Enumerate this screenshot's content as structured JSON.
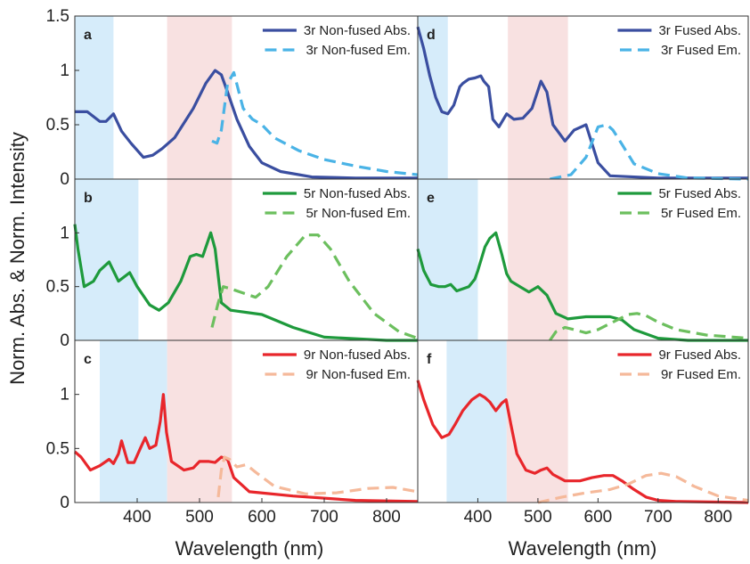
{
  "figure": {
    "ylabel": "Norm. Abs. & Norm. Intensity",
    "xlabel_left": "Wavelength (nm)",
    "xlabel_right": "Wavelength (nm)"
  },
  "chart_data": [
    {
      "id": "a",
      "type": "line",
      "panel_label": "a",
      "xlim": [
        300,
        850
      ],
      "ylim": [
        0,
        1.5
      ],
      "yticks": [
        0,
        0.5,
        1,
        1.5
      ],
      "xticks": [],
      "bands": [
        {
          "range": [
            300,
            362
          ],
          "color": "#d6ecfa"
        },
        {
          "range": [
            448,
            552
          ],
          "color": "#f8e1e1"
        }
      ],
      "series": [
        {
          "name": "3r Non-fused Abs.",
          "style": "solid",
          "color": "#3a4ea0",
          "x": [
            300,
            320,
            340,
            350,
            362,
            375,
            390,
            410,
            425,
            440,
            460,
            490,
            510,
            525,
            535,
            545,
            560,
            580,
            600,
            630,
            680,
            750,
            850
          ],
          "y": [
            0.62,
            0.62,
            0.53,
            0.53,
            0.6,
            0.44,
            0.33,
            0.2,
            0.22,
            0.28,
            0.38,
            0.65,
            0.88,
            1.0,
            0.96,
            0.8,
            0.55,
            0.3,
            0.15,
            0.07,
            0.02,
            0.01,
            0.01
          ]
        },
        {
          "name": "3r Non-fused Em.",
          "style": "dashed",
          "color": "#4ab3e6",
          "x": [
            520,
            528,
            535,
            545,
            555,
            570,
            585,
            600,
            620,
            660,
            700,
            750,
            800,
            850
          ],
          "y": [
            0.35,
            0.33,
            0.45,
            0.88,
            0.98,
            0.65,
            0.55,
            0.5,
            0.38,
            0.26,
            0.18,
            0.12,
            0.07,
            0.04
          ]
        }
      ]
    },
    {
      "id": "b",
      "type": "line",
      "panel_label": "b",
      "xlim": [
        300,
        850
      ],
      "ylim": [
        0,
        1.5
      ],
      "yticks": [
        0,
        0.5,
        1
      ],
      "xticks": [],
      "bands": [
        {
          "range": [
            300,
            402
          ],
          "color": "#d6ecfa"
        },
        {
          "range": [
            448,
            552
          ],
          "color": "#f8e1e1"
        }
      ],
      "series": [
        {
          "name": "5r Non-fused Abs.",
          "style": "solid",
          "color": "#1e9a3c",
          "x": [
            300,
            305,
            315,
            330,
            340,
            355,
            370,
            388,
            400,
            420,
            435,
            450,
            470,
            485,
            495,
            505,
            518,
            525,
            535,
            550,
            600,
            650,
            700,
            800,
            850
          ],
          "y": [
            1.08,
            0.85,
            0.5,
            0.55,
            0.65,
            0.73,
            0.55,
            0.63,
            0.5,
            0.33,
            0.28,
            0.35,
            0.55,
            0.78,
            0.8,
            0.78,
            1.0,
            0.85,
            0.35,
            0.28,
            0.24,
            0.12,
            0.03,
            0.0,
            0.0
          ]
        },
        {
          "name": "5r Non-fused Em.",
          "style": "dashed",
          "color": "#6cbf5e",
          "x": [
            520,
            530,
            538,
            550,
            570,
            590,
            610,
            640,
            670,
            690,
            710,
            740,
            780,
            820,
            850
          ],
          "y": [
            0.12,
            0.35,
            0.5,
            0.48,
            0.44,
            0.4,
            0.5,
            0.78,
            0.98,
            0.98,
            0.85,
            0.55,
            0.25,
            0.08,
            0.02
          ]
        }
      ]
    },
    {
      "id": "c",
      "type": "line",
      "panel_label": "c",
      "xlim": [
        300,
        850
      ],
      "ylim": [
        0,
        1.5
      ],
      "yticks": [
        0,
        0.5,
        1
      ],
      "xticks": [
        400,
        500,
        600,
        700,
        800
      ],
      "bands": [
        {
          "range": [
            340,
            448
          ],
          "color": "#d6ecfa"
        },
        {
          "range": [
            448,
            552
          ],
          "color": "#f8e1e1"
        }
      ],
      "series": [
        {
          "name": "9r Non-fused Abs.",
          "style": "solid",
          "color": "#e8262b",
          "x": [
            300,
            310,
            325,
            340,
            355,
            362,
            370,
            375,
            385,
            395,
            405,
            413,
            420,
            430,
            437,
            442,
            447,
            455,
            475,
            490,
            500,
            515,
            525,
            535,
            545,
            555,
            580,
            650,
            750,
            850
          ],
          "y": [
            0.47,
            0.42,
            0.3,
            0.34,
            0.4,
            0.36,
            0.45,
            0.57,
            0.37,
            0.37,
            0.5,
            0.6,
            0.5,
            0.53,
            0.75,
            1.0,
            0.65,
            0.38,
            0.3,
            0.32,
            0.38,
            0.38,
            0.37,
            0.42,
            0.4,
            0.23,
            0.1,
            0.06,
            0.02,
            0.01
          ]
        },
        {
          "name": "9r Non-fused Em.",
          "style": "dashed",
          "color": "#f5b99a",
          "x": [
            530,
            535,
            540,
            548,
            560,
            575,
            590,
            620,
            670,
            720,
            770,
            810,
            850
          ],
          "y": [
            0.05,
            0.3,
            0.42,
            0.4,
            0.33,
            0.35,
            0.28,
            0.15,
            0.08,
            0.09,
            0.13,
            0.14,
            0.1
          ]
        }
      ]
    },
    {
      "id": "d",
      "type": "line",
      "panel_label": "d",
      "xlim": [
        300,
        850
      ],
      "ylim": [
        0,
        1.5
      ],
      "yticks": [],
      "xticks": [],
      "bands": [
        {
          "range": [
            300,
            350
          ],
          "color": "#d6ecfa"
        },
        {
          "range": [
            450,
            550
          ],
          "color": "#f8e1e1"
        }
      ],
      "series": [
        {
          "name": "3r Fused Abs.",
          "style": "solid",
          "color": "#3a4ea0",
          "x": [
            300,
            310,
            320,
            330,
            340,
            350,
            360,
            370,
            375,
            385,
            395,
            405,
            410,
            418,
            425,
            435,
            448,
            460,
            475,
            490,
            505,
            515,
            525,
            545,
            560,
            580,
            600,
            620,
            700,
            850
          ],
          "y": [
            1.4,
            1.2,
            0.95,
            0.75,
            0.62,
            0.6,
            0.68,
            0.85,
            0.88,
            0.92,
            0.93,
            0.95,
            0.9,
            0.85,
            0.55,
            0.48,
            0.6,
            0.55,
            0.56,
            0.65,
            0.9,
            0.8,
            0.5,
            0.35,
            0.45,
            0.5,
            0.15,
            0.03,
            0.01,
            0.01
          ]
        },
        {
          "name": "3r Fused Em.",
          "style": "dashed",
          "color": "#4ab3e6",
          "x": [
            520,
            555,
            580,
            600,
            615,
            625,
            640,
            660,
            700,
            750,
            850
          ],
          "y": [
            0.0,
            0.04,
            0.2,
            0.48,
            0.5,
            0.45,
            0.32,
            0.14,
            0.05,
            0.01,
            0.0
          ]
        }
      ]
    },
    {
      "id": "e",
      "type": "line",
      "panel_label": "e",
      "xlim": [
        300,
        850
      ],
      "ylim": [
        0,
        1.5
      ],
      "yticks": [],
      "xticks": [],
      "bands": [
        {
          "range": [
            300,
            400
          ],
          "color": "#d6ecfa"
        },
        {
          "range": [
            450,
            550
          ],
          "color": "#f8e1e1"
        }
      ],
      "series": [
        {
          "name": "5r Fused Abs.",
          "style": "solid",
          "color": "#1e9a3c",
          "x": [
            300,
            310,
            322,
            335,
            345,
            355,
            365,
            375,
            385,
            395,
            400,
            412,
            420,
            430,
            440,
            448,
            455,
            470,
            485,
            500,
            515,
            530,
            550,
            580,
            600,
            620,
            640,
            660,
            700,
            750,
            850
          ],
          "y": [
            0.85,
            0.65,
            0.52,
            0.5,
            0.5,
            0.52,
            0.46,
            0.48,
            0.5,
            0.57,
            0.65,
            0.87,
            0.95,
            1.0,
            0.8,
            0.62,
            0.55,
            0.5,
            0.45,
            0.5,
            0.42,
            0.25,
            0.2,
            0.22,
            0.22,
            0.22,
            0.19,
            0.1,
            0.02,
            0.0,
            0.0
          ]
        },
        {
          "name": "5r Fused Em.",
          "style": "dashed",
          "color": "#6cbf5e",
          "x": [
            520,
            530,
            545,
            560,
            580,
            600,
            625,
            650,
            665,
            680,
            700,
            730,
            780,
            850
          ],
          "y": [
            0.0,
            0.08,
            0.12,
            0.1,
            0.07,
            0.1,
            0.17,
            0.24,
            0.25,
            0.23,
            0.17,
            0.1,
            0.05,
            0.02
          ]
        }
      ]
    },
    {
      "id": "f",
      "type": "line",
      "panel_label": "f",
      "xlim": [
        300,
        850
      ],
      "ylim": [
        0,
        1.5
      ],
      "yticks": [],
      "xticks": [
        400,
        500,
        600,
        700,
        800
      ],
      "bands": [
        {
          "range": [
            348,
            448
          ],
          "color": "#d6ecfa"
        },
        {
          "range": [
            448,
            550
          ],
          "color": "#f8e1e1"
        }
      ],
      "series": [
        {
          "name": "9r Fused Abs.",
          "style": "solid",
          "color": "#e8262b",
          "x": [
            300,
            310,
            325,
            340,
            352,
            362,
            375,
            390,
            403,
            412,
            420,
            430,
            440,
            447,
            455,
            465,
            480,
            495,
            505,
            515,
            525,
            545,
            570,
            590,
            610,
            625,
            640,
            660,
            680,
            700,
            730,
            850
          ],
          "y": [
            1.13,
            0.95,
            0.72,
            0.6,
            0.63,
            0.72,
            0.85,
            0.95,
            1.0,
            0.97,
            0.93,
            0.85,
            0.92,
            0.95,
            0.72,
            0.45,
            0.3,
            0.27,
            0.3,
            0.32,
            0.26,
            0.2,
            0.2,
            0.23,
            0.25,
            0.25,
            0.2,
            0.12,
            0.05,
            0.02,
            0.01,
            0.0
          ]
        },
        {
          "name": "9r Fused Em.",
          "style": "dashed",
          "color": "#f5b99a",
          "x": [
            500,
            540,
            580,
            620,
            650,
            680,
            705,
            730,
            760,
            800,
            850
          ],
          "y": [
            0.0,
            0.05,
            0.09,
            0.12,
            0.17,
            0.25,
            0.27,
            0.24,
            0.15,
            0.06,
            0.02
          ]
        }
      ]
    }
  ]
}
